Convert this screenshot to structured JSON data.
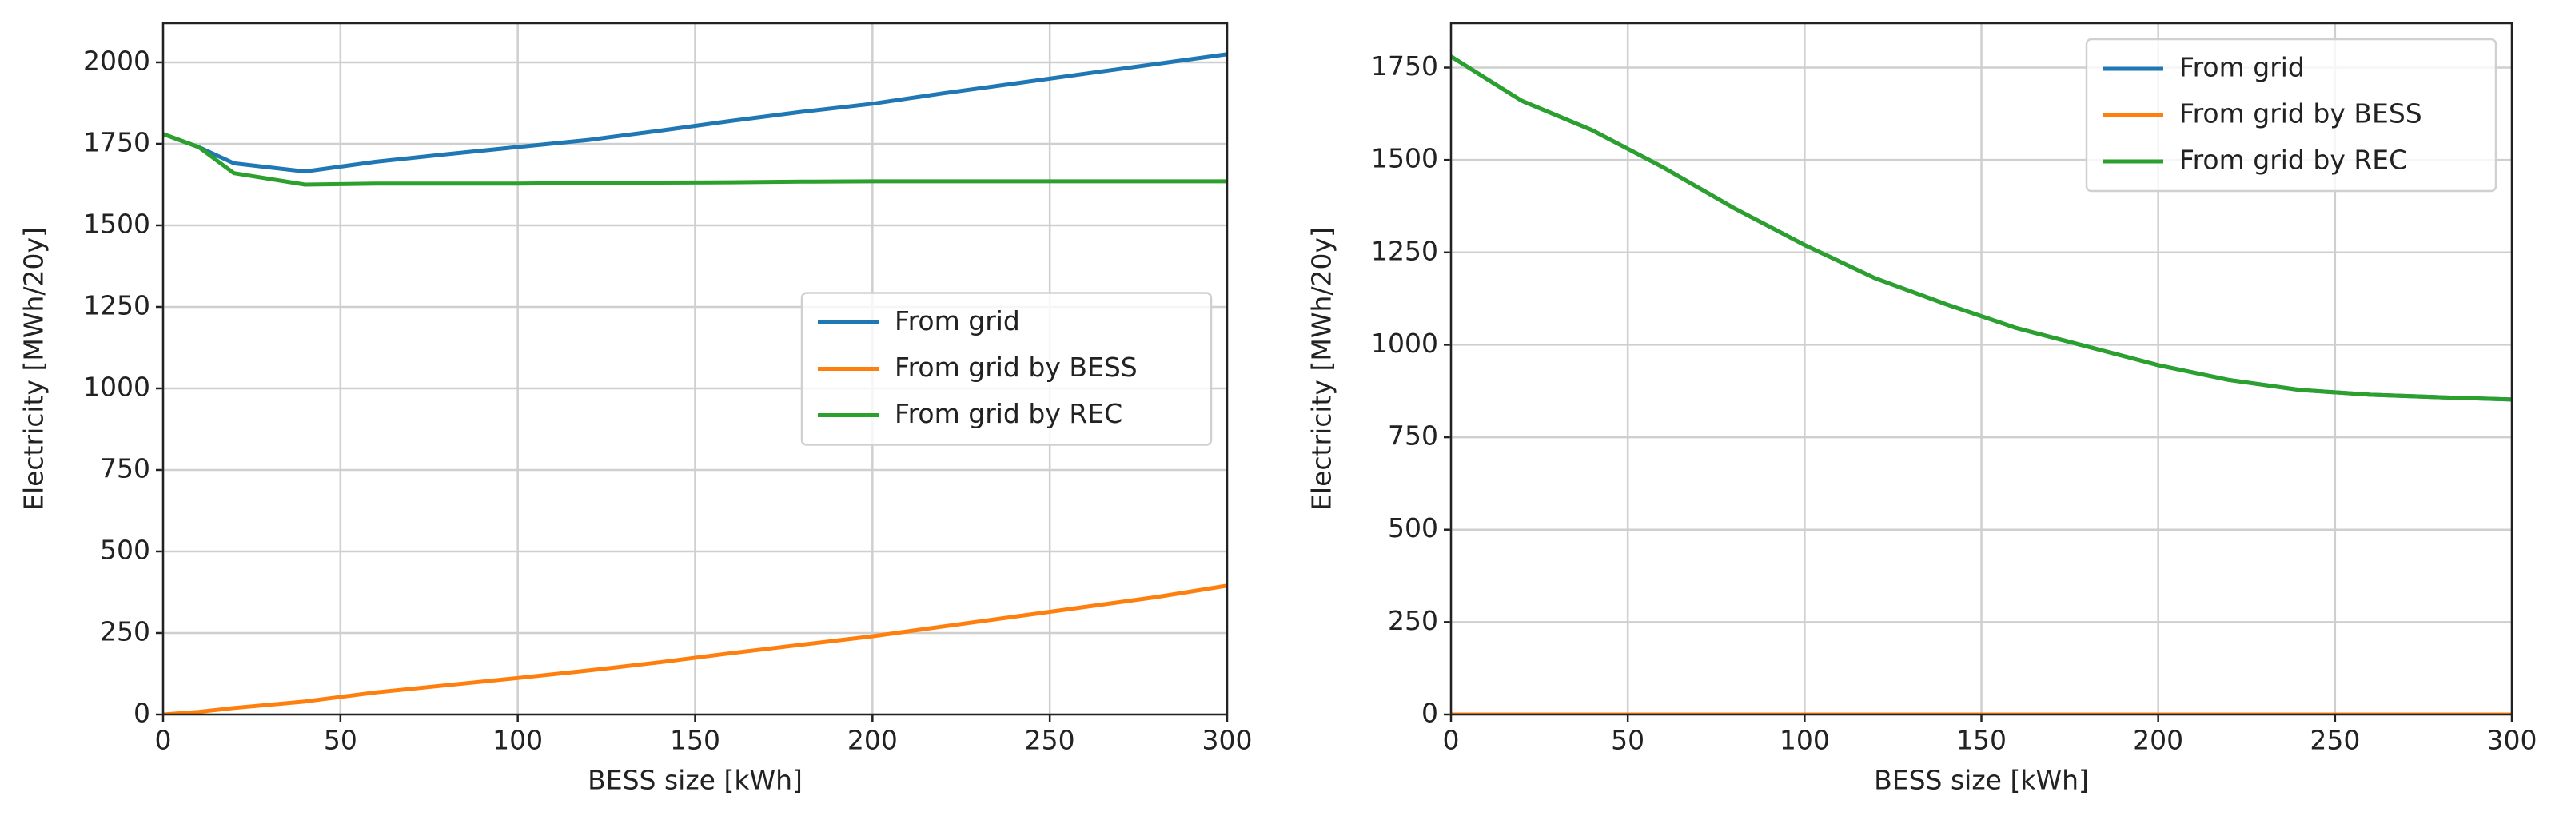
{
  "chart_data": [
    {
      "type": "line",
      "ylabel": "Electricity [MWh/20y]",
      "xlabel": "BESS size [kWh]",
      "x": [
        0,
        10,
        20,
        40,
        60,
        80,
        100,
        120,
        140,
        160,
        180,
        200,
        220,
        240,
        260,
        280,
        300
      ],
      "series": [
        {
          "name": "From grid",
          "color": "#1f77b4",
          "values": [
            1780,
            1740,
            1690,
            1665,
            1695,
            1718,
            1740,
            1762,
            1790,
            1820,
            1848,
            1873,
            1905,
            1935,
            1965,
            1995,
            2025
          ]
        },
        {
          "name": "From grid by BESS",
          "color": "#ff7f0e",
          "values": [
            0,
            8,
            20,
            40,
            68,
            90,
            112,
            135,
            160,
            188,
            214,
            240,
            270,
            300,
            330,
            360,
            395
          ]
        },
        {
          "name": "From grid by REC",
          "color": "#2ca02c",
          "values": [
            1780,
            1740,
            1660,
            1625,
            1628,
            1628,
            1628,
            1630,
            1631,
            1632,
            1634,
            1635,
            1635,
            1635,
            1635,
            1635,
            1635
          ]
        }
      ],
      "xlim": [
        0,
        300
      ],
      "xticks": [
        0,
        50,
        100,
        150,
        200,
        250,
        300
      ],
      "ylim": [
        0,
        2120
      ],
      "yticks": [
        0,
        250,
        500,
        750,
        1000,
        1250,
        1500,
        1750,
        2000
      ],
      "grid": true,
      "legend": "center right"
    },
    {
      "type": "line",
      "ylabel": "Electricity [MWh/20y]",
      "xlabel": "BESS size [kWh]",
      "x": [
        0,
        10,
        20,
        40,
        60,
        80,
        100,
        120,
        140,
        160,
        180,
        200,
        220,
        240,
        260,
        280,
        300
      ],
      "series": [
        {
          "name": "From grid",
          "color": "#1f77b4",
          "values": [
            1780,
            1720,
            1660,
            1580,
            1480,
            1370,
            1270,
            1180,
            1110,
            1045,
            995,
            945,
            905,
            878,
            865,
            858,
            852
          ]
        },
        {
          "name": "From grid by BESS",
          "color": "#ff7f0e",
          "values": [
            0,
            0,
            0,
            0,
            0,
            0,
            0,
            0,
            0,
            0,
            0,
            0,
            0,
            0,
            0,
            0,
            0
          ]
        },
        {
          "name": "From grid by REC",
          "color": "#2ca02c",
          "values": [
            1780,
            1720,
            1660,
            1580,
            1480,
            1370,
            1270,
            1180,
            1110,
            1045,
            995,
            945,
            905,
            878,
            865,
            858,
            852
          ]
        }
      ],
      "xlim": [
        0,
        300
      ],
      "xticks": [
        0,
        50,
        100,
        150,
        200,
        250,
        300
      ],
      "ylim": [
        0,
        1870
      ],
      "yticks": [
        0,
        250,
        500,
        750,
        1000,
        1250,
        1500,
        1750
      ],
      "grid": true,
      "legend": "upper right"
    }
  ]
}
